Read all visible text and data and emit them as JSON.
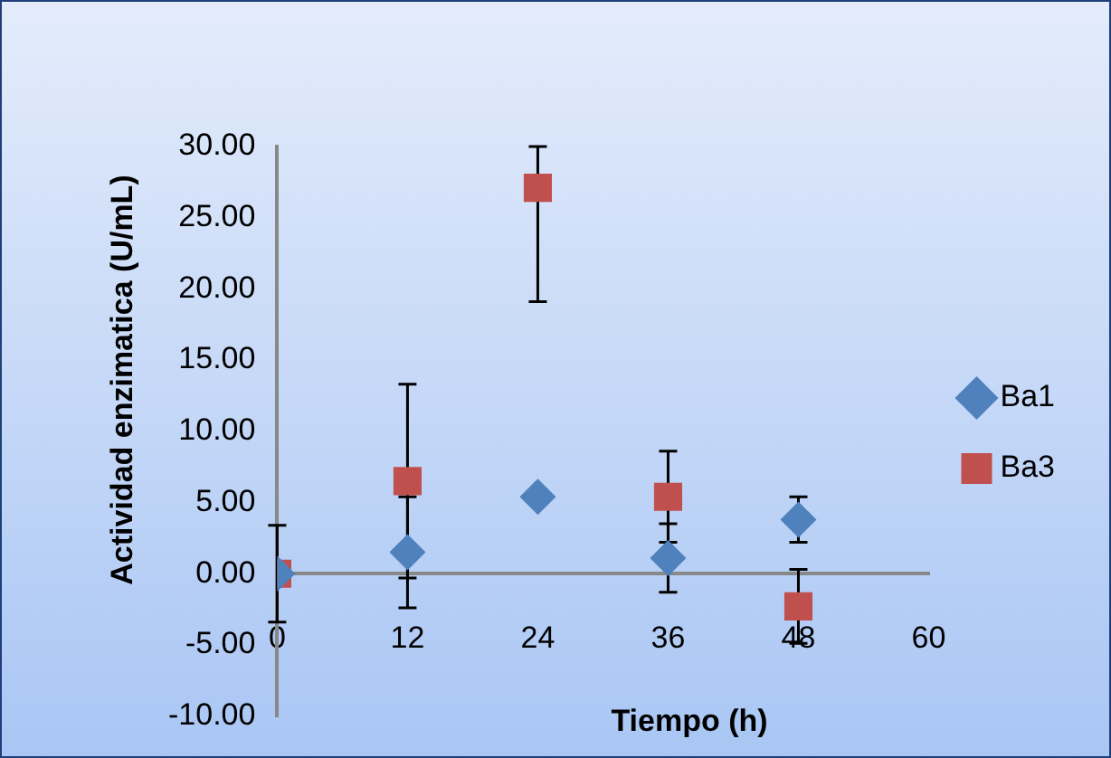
{
  "chart_data": {
    "type": "scatter",
    "xlabel": "Tiempo (h)",
    "ylabel": "Actividad enzimatica (U/mL)",
    "x": [
      0,
      12,
      24,
      36,
      48
    ],
    "series": [
      {
        "name": "Ba1",
        "color": "#4f81bd",
        "marker": "diamond",
        "values": [
          0,
          1.5,
          5.4,
          1.1,
          3.8
        ],
        "errors": [
          3.4,
          3.9,
          null,
          2.4,
          1.6
        ]
      },
      {
        "name": "Ba3",
        "color": "#c0504d",
        "marker": "square",
        "values": [
          0,
          6.5,
          27.1,
          5.4,
          -2.3
        ],
        "errors": [
          null,
          6.8,
          [
            19.1,
            30
          ],
          3.2,
          2.6
        ]
      }
    ],
    "xlim": [
      0,
      60
    ],
    "xticks": [
      0,
      12,
      24,
      36,
      48,
      60
    ],
    "ylim": [
      -10,
      30
    ],
    "yticks": [
      {
        "value": -10,
        "label": "-10.00"
      },
      {
        "value": -5,
        "label": "-5.00"
      },
      {
        "value": 0,
        "label": "0.00"
      },
      {
        "value": 5,
        "label": "5.00"
      },
      {
        "value": 10,
        "label": "10.00"
      },
      {
        "value": 15,
        "label": "15.00"
      },
      {
        "value": 20,
        "label": "20.00"
      },
      {
        "value": 25,
        "label": "25.00"
      },
      {
        "value": 30,
        "label": "30.00"
      }
    ],
    "grid": false,
    "legend": "right"
  }
}
